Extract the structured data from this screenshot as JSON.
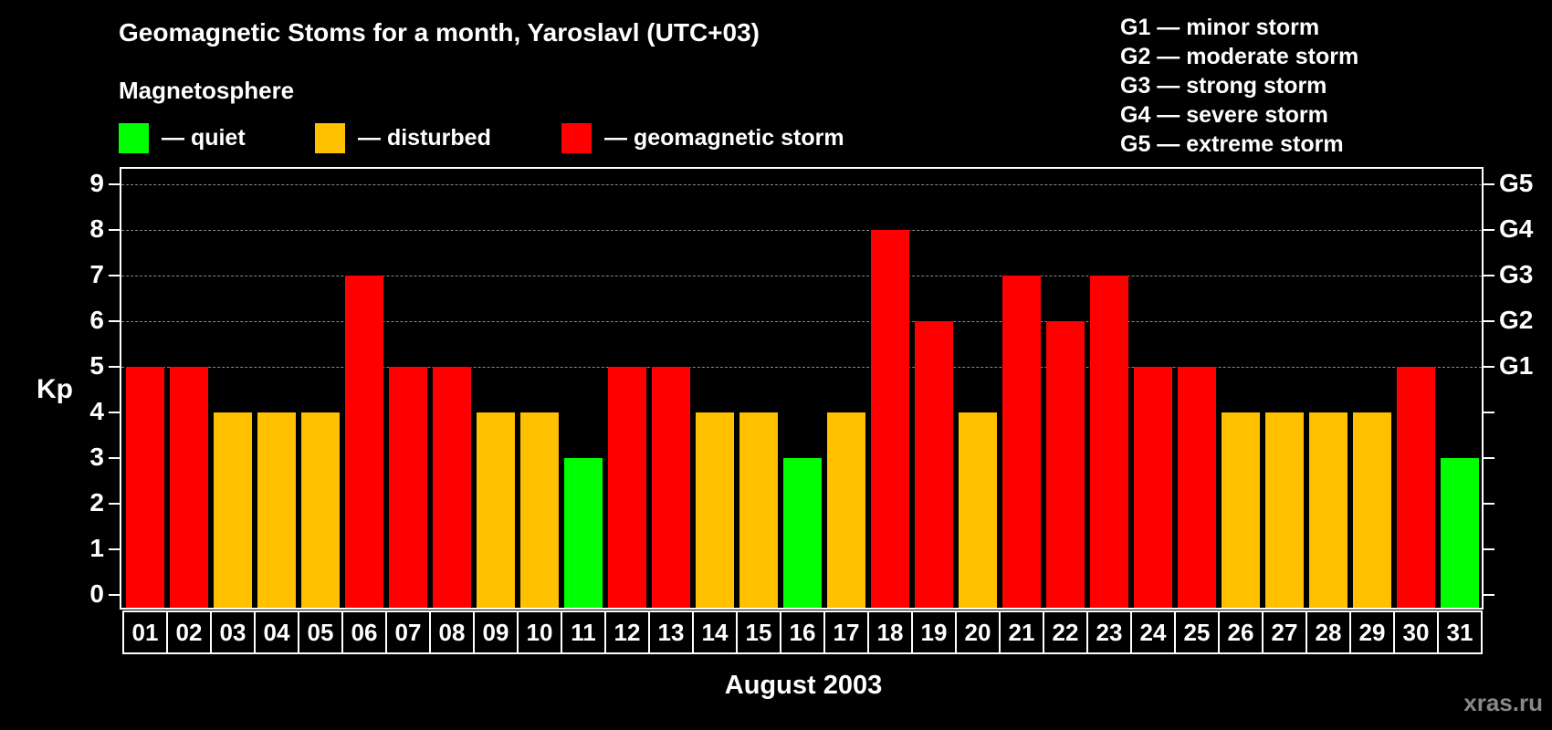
{
  "header": {
    "title": "Geomagnetic Stoms for a month, Yaroslavl (UTC+03)",
    "subtitle": "Magnetosphere"
  },
  "legend": [
    {
      "label": "— quiet",
      "color": "#00ff00"
    },
    {
      "label": "— disturbed",
      "color": "#ffc000"
    },
    {
      "label": "— geomagnetic storm",
      "color": "#ff0000"
    }
  ],
  "g_legend": [
    "G1 — minor storm",
    "G2 — moderate storm",
    "G3 — strong storm",
    "G4 — severe storm",
    "G5 — extreme storm"
  ],
  "watermark": "xras.ru",
  "chart_data": {
    "type": "bar",
    "title": "Geomagnetic Stoms for a month, Yaroslavl (UTC+03)",
    "xlabel": "August 2003",
    "ylabel": "Kp",
    "ylim": [
      0,
      9
    ],
    "yticks": [
      0,
      1,
      2,
      3,
      4,
      5,
      6,
      7,
      8,
      9
    ],
    "right_axis_labels": {
      "5": "G1",
      "6": "G2",
      "7": "G3",
      "8": "G4",
      "9": "G5"
    },
    "grid": "dashed horizontal at 5-9",
    "categories": [
      "01",
      "02",
      "03",
      "04",
      "05",
      "06",
      "07",
      "08",
      "09",
      "10",
      "11",
      "12",
      "13",
      "14",
      "15",
      "16",
      "17",
      "18",
      "19",
      "20",
      "21",
      "22",
      "23",
      "24",
      "25",
      "26",
      "27",
      "28",
      "29",
      "30",
      "31"
    ],
    "values": [
      5,
      5,
      4,
      4,
      4,
      7,
      5,
      5,
      4,
      4,
      3,
      5,
      5,
      4,
      4,
      3,
      4,
      8,
      6,
      4,
      7,
      6,
      7,
      5,
      5,
      4,
      4,
      4,
      4,
      5,
      3
    ],
    "color_rule": {
      "quiet": "Kp<=3 #00ff00",
      "disturbed": "Kp=4 #ffc000",
      "storm": "Kp>=5 #ff0000"
    }
  }
}
